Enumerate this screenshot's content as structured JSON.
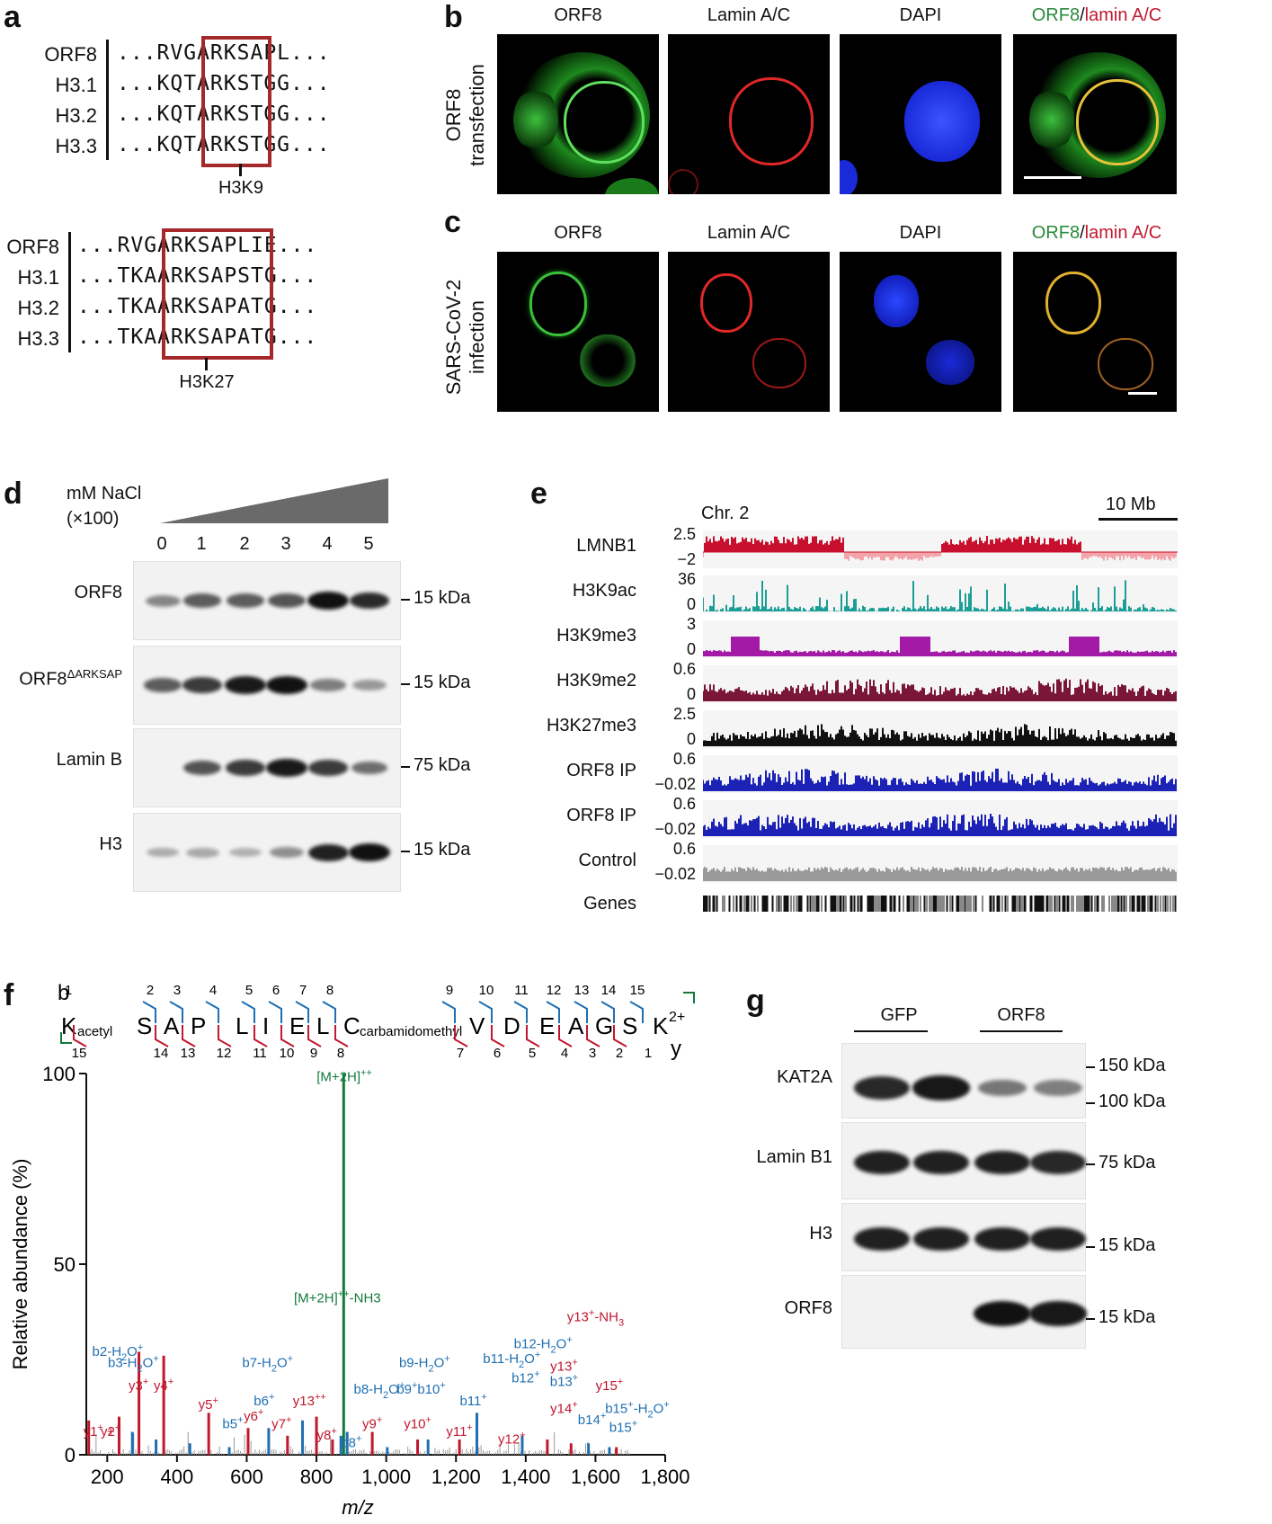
{
  "panels": {
    "a": "a",
    "b": "b",
    "c": "c",
    "d": "d",
    "e": "e",
    "f": "f",
    "g": "g"
  },
  "panel_a": {
    "top": {
      "rows": [
        {
          "label": "ORF8",
          "seq": "...RVGARKSAPL..."
        },
        {
          "label": "H3.1",
          "seq": "...KQTARKSTGG..."
        },
        {
          "label": "H3.2",
          "seq": "...KQTARKSTGG..."
        },
        {
          "label": "H3.3",
          "seq": "...KQTARKSTGG..."
        }
      ],
      "site": "H3K9"
    },
    "bottom": {
      "rows": [
        {
          "label": "ORF8",
          "seq": "...RVGARKSAPLIE..."
        },
        {
          "label": "H3.1",
          "seq": "...TKAARKSAPSTG..."
        },
        {
          "label": "H3.2",
          "seq": "...TKAARKSAPATG..."
        },
        {
          "label": "H3.3",
          "seq": "...TKAARKSAPATG..."
        }
      ],
      "site": "H3K27"
    }
  },
  "panel_b": {
    "row_label_1": "ORF8",
    "row_label_2": "transfection",
    "cols": [
      "ORF8",
      "Lamin A/C",
      "DAPI"
    ],
    "merge_green": "ORF8",
    "merge_sep": "/",
    "merge_red": "lamin A/C"
  },
  "panel_c": {
    "row_label_1": "SARS-CoV-2",
    "row_label_2": "infection",
    "cols": [
      "ORF8",
      "Lamin A/C",
      "DAPI"
    ],
    "merge_green": "ORF8",
    "merge_sep": "/",
    "merge_red": "lamin A/C"
  },
  "panel_d": {
    "nacl_1": "mM NaCl",
    "nacl_2": "(×100)",
    "lanes": [
      "0",
      "1",
      "2",
      "3",
      "4",
      "5"
    ],
    "blots": [
      {
        "label": "ORF8",
        "size": "15 kDa",
        "levels": [
          0.3,
          0.55,
          0.55,
          0.6,
          1.0,
          0.85
        ]
      },
      {
        "label": "ORF8",
        "label_sup": "ΔARKSAP",
        "size": "15 kDa",
        "levels": [
          0.55,
          0.75,
          0.95,
          1.0,
          0.35,
          0.2
        ]
      },
      {
        "label": "Lamin  B",
        "size": "75 kDa",
        "levels": [
          0,
          0.6,
          0.75,
          0.95,
          0.75,
          0.45
        ]
      },
      {
        "label": "H3",
        "size": "15 kDa",
        "levels": [
          0.08,
          0.1,
          0.05,
          0.25,
          0.9,
          1.0
        ]
      }
    ]
  },
  "panel_e": {
    "chrom": "Chr. 2",
    "scale": "10 Mb",
    "tracks": [
      {
        "label": "LMNB1",
        "ymax": "2.5",
        "ymin": "−2",
        "color": "#c8102e",
        "neg_color": "#f4a3a8"
      },
      {
        "label": "H3K9ac",
        "ymax": "36",
        "ymin": "0",
        "color": "#1a9e96"
      },
      {
        "label": "H3K9me3",
        "ymax": "3",
        "ymin": "0",
        "color": "#a21aa6"
      },
      {
        "label": "H3K9me2",
        "ymax": "0.6",
        "ymin": "0",
        "color": "#7a1638"
      },
      {
        "label": "H3K27me3",
        "ymax": "2.5",
        "ymin": "0",
        "color": "#111111"
      },
      {
        "label": "ORF8 IP",
        "ymax": "0.6",
        "ymin": "−0.02",
        "color": "#1c22b5"
      },
      {
        "label": "ORF8 IP",
        "ymax": "0.6",
        "ymin": "−0.02",
        "color": "#1c22b5"
      },
      {
        "label": "Control",
        "ymax": "0.6",
        "ymin": "−0.02",
        "color": "#9a9a9a"
      }
    ],
    "genes_label": "Genes"
  },
  "panel_f": {
    "b_label": "b",
    "y_label_seq": "y",
    "charge": "2+",
    "residues": [
      {
        "aa": "K",
        "mod": "acetyl"
      },
      {
        "aa": "S"
      },
      {
        "aa": "A"
      },
      {
        "aa": "P"
      },
      {
        "aa": "L"
      },
      {
        "aa": "I"
      },
      {
        "aa": "E"
      },
      {
        "aa": "L"
      },
      {
        "aa": "C",
        "mod": "carbamidomethyl"
      },
      {
        "aa": "V"
      },
      {
        "aa": "D"
      },
      {
        "aa": "E"
      },
      {
        "aa": "A"
      },
      {
        "aa": "G"
      },
      {
        "aa": "S"
      },
      {
        "aa": "K"
      }
    ],
    "b_numbers": [
      "1",
      "2",
      "3",
      "4",
      "5",
      "6",
      "7",
      "8",
      "9",
      "10",
      "11",
      "12",
      "13",
      "14",
      "15"
    ],
    "y_numbers": [
      "15",
      "14",
      "13",
      "12",
      "11",
      "10",
      "9",
      "8",
      "7",
      "6",
      "5",
      "4",
      "3",
      "2",
      "1"
    ],
    "chart_data": {
      "type": "bar",
      "xlabel": "m/z",
      "ylabel": "Relative abundance (%)",
      "xlim": [
        140,
        1800
      ],
      "ylim": [
        0,
        100
      ],
      "xticks": [
        "200",
        "400",
        "600",
        "800",
        "1,000",
        "1,200",
        "1,400",
        "1,600",
        "1,800"
      ],
      "yticks": [
        "0",
        "50",
        "100"
      ],
      "colors": {
        "y": "#c0182e",
        "b": "#1f6fb2",
        "precursor": "#127a3a",
        "other": "#9a9a9a"
      },
      "peaks": [
        {
          "mz": 147,
          "rel": 9,
          "ion": "y"
        },
        {
          "mz": 234,
          "rel": 10,
          "ion": "y"
        },
        {
          "mz": 272,
          "rel": 6,
          "ion": "b"
        },
        {
          "mz": 291,
          "rel": 27,
          "ion": "y"
        },
        {
          "mz": 340,
          "rel": 4,
          "ion": "b"
        },
        {
          "mz": 362,
          "rel": 26,
          "ion": "y"
        },
        {
          "mz": 437,
          "rel": 3,
          "ion": "b"
        },
        {
          "mz": 491,
          "rel": 11,
          "ion": "y"
        },
        {
          "mz": 550,
          "rel": 2,
          "ion": "b"
        },
        {
          "mz": 604,
          "rel": 7,
          "ion": "y"
        },
        {
          "mz": 663,
          "rel": 7,
          "ion": "b"
        },
        {
          "mz": 717,
          "rel": 5,
          "ion": "y"
        },
        {
          "mz": 760,
          "rel": 9,
          "ion": "b"
        },
        {
          "mz": 800,
          "rel": 10,
          "ion": "y"
        },
        {
          "mz": 846,
          "rel": 4,
          "ion": "y"
        },
        {
          "mz": 870,
          "rel": 5,
          "ion": "b"
        },
        {
          "mz": 878,
          "rel": 100,
          "ion": "precursor"
        },
        {
          "mz": 888,
          "rel": 6,
          "ion": "b"
        },
        {
          "mz": 960,
          "rel": 6,
          "ion": "y"
        },
        {
          "mz": 1003,
          "rel": 2,
          "ion": "b"
        },
        {
          "mz": 1090,
          "rel": 4,
          "ion": "y"
        },
        {
          "mz": 1120,
          "rel": 4,
          "ion": "b"
        },
        {
          "mz": 1210,
          "rel": 4,
          "ion": "y"
        },
        {
          "mz": 1260,
          "rel": 11,
          "ion": "b"
        },
        {
          "mz": 1390,
          "rel": 5,
          "ion": "b"
        },
        {
          "mz": 1462,
          "rel": 4,
          "ion": "y"
        },
        {
          "mz": 1530,
          "rel": 3,
          "ion": "y"
        },
        {
          "mz": 1580,
          "rel": 3,
          "ion": "b"
        },
        {
          "mz": 1640,
          "rel": 2,
          "ion": "b"
        },
        {
          "mz": 1660,
          "rel": 2,
          "ion": "y"
        }
      ],
      "annotations": [
        {
          "mz": 160,
          "rel": 5,
          "text": "y1",
          "sup": "+",
          "color": "y"
        },
        {
          "mz": 210,
          "rel": 5,
          "text": "y2",
          "sup": "+",
          "color": "y"
        },
        {
          "mz": 210,
          "rel": 5,
          "text": "+",
          "color": "y"
        },
        {
          "mz": 230,
          "rel": 26,
          "text": "b2-H",
          "sub": "2",
          "text2": "O",
          "sup2": "+",
          "color": "b"
        },
        {
          "mz": 275,
          "rel": 23,
          "text": "b3-H",
          "sub": "2",
          "text2": "O",
          "sup2": "+",
          "color": "b"
        },
        {
          "mz": 290,
          "rel": 17,
          "text": "y3",
          "sup": "+",
          "color": "y"
        },
        {
          "mz": 362,
          "rel": 17,
          "text": "y4",
          "sup": "+",
          "color": "y"
        },
        {
          "mz": 490,
          "rel": 12,
          "text": "y5",
          "sup": "+",
          "color": "y"
        },
        {
          "mz": 560,
          "rel": 7,
          "text": "b5",
          "sup": "+",
          "color": "b"
        },
        {
          "mz": 620,
          "rel": 9,
          "text": "y6",
          "sup": "+",
          "color": "y"
        },
        {
          "mz": 660,
          "rel": 23,
          "text": "b7-H",
          "sub": "2",
          "text2": "O",
          "sup2": "+",
          "color": "b"
        },
        {
          "mz": 650,
          "rel": 13,
          "text": "b6",
          "sup": "+",
          "color": "b"
        },
        {
          "mz": 700,
          "rel": 7,
          "text": "y7",
          "sup": "+",
          "color": "y"
        },
        {
          "mz": 780,
          "rel": 13,
          "text": "y13",
          "sup": "++",
          "color": "y"
        },
        {
          "mz": 830,
          "rel": 4,
          "text": "y8",
          "sup": "+",
          "color": "y"
        },
        {
          "mz": 980,
          "rel": 16,
          "text": "b8-H",
          "sub": "2",
          "text2": "O",
          "sup2": "+",
          "color": "b"
        },
        {
          "mz": 900,
          "rel": 2,
          "text": "b8",
          "sup": "+",
          "color": "b"
        },
        {
          "mz": 960,
          "rel": 7,
          "text": "y9",
          "sup": "+",
          "color": "y"
        },
        {
          "mz": 1110,
          "rel": 23,
          "text": "b9-H",
          "sub": "2",
          "text2": "O",
          "sup2": "+",
          "color": "b"
        },
        {
          "mz": 1060,
          "rel": 16,
          "text": "b9",
          "sup": "+",
          "color": "b"
        },
        {
          "mz": 1090,
          "rel": 7,
          "text": "y10",
          "sup": "+",
          "color": "y"
        },
        {
          "mz": 1130,
          "rel": 16,
          "text": "b10",
          "sup": "+",
          "color": "b"
        },
        {
          "mz": 1360,
          "rel": 24,
          "text": "b11-H",
          "sub": "2",
          "text2": "O",
          "sup2": "+",
          "color": "b"
        },
        {
          "mz": 1250,
          "rel": 13,
          "text": "b11",
          "sup": "+",
          "color": "b"
        },
        {
          "mz": 1210,
          "rel": 5,
          "text": "y11",
          "sup": "+",
          "color": "y"
        },
        {
          "mz": 1450,
          "rel": 28,
          "text": "b12-H",
          "sub": "2",
          "text2": "O",
          "sup2": "+",
          "color": "b"
        },
        {
          "mz": 1400,
          "rel": 19,
          "text": "b12",
          "sup": "+",
          "color": "b"
        },
        {
          "mz": 1360,
          "rel": 3,
          "text": "y12",
          "sup": "+",
          "color": "y"
        },
        {
          "mz": 1600,
          "rel": 35,
          "text": "y13",
          "sup": "+",
          "text2": "-NH",
          "sub2": "3",
          "color": "y"
        },
        {
          "mz": 1510,
          "rel": 22,
          "text": "y13",
          "sup": "+",
          "color": "y"
        },
        {
          "mz": 1510,
          "rel": 18,
          "text": "b13",
          "sup": "+",
          "color": "b"
        },
        {
          "mz": 1510,
          "rel": 11,
          "text": "y14",
          "sup": "+",
          "color": "y"
        },
        {
          "mz": 1590,
          "rel": 8,
          "text": "b14",
          "sup": "+",
          "color": "b"
        },
        {
          "mz": 1640,
          "rel": 17,
          "text": "y15",
          "sup": "+",
          "color": "y"
        },
        {
          "mz": 1720,
          "rel": 11,
          "text": "b15",
          "sup": "+",
          "text2": "-H",
          "sub2": "2",
          "text3": "O",
          "sup3": "+",
          "color": "b"
        },
        {
          "mz": 1680,
          "rel": 6,
          "text": "b15",
          "sup": "+",
          "color": "b"
        },
        {
          "mz": 860,
          "rel": 40,
          "text": "[M+2H]",
          "sup": "++",
          "text2": "-NH3",
          "color": "precursor"
        },
        {
          "mz": 880,
          "rel": 98,
          "text": "[M+2H]",
          "sup": "++",
          "color": "precursor"
        }
      ]
    }
  },
  "panel_g": {
    "group1": "GFP",
    "group2": "ORF8",
    "blots": [
      {
        "label": "KAT2A",
        "sizes": [
          "150 kDa",
          "100 kDa"
        ],
        "levels": [
          0.85,
          0.95,
          0.35,
          0.3
        ]
      },
      {
        "label": "Lamin B1",
        "sizes": [
          "75 kDa"
        ],
        "levels": [
          0.9,
          0.9,
          0.9,
          0.85
        ]
      },
      {
        "label": "H3",
        "sizes": [
          "15 kDa"
        ],
        "levels": [
          0.9,
          0.9,
          0.9,
          0.9
        ]
      },
      {
        "label": "ORF8",
        "sizes": [
          "15 kDa"
        ],
        "levels": [
          0,
          0,
          1.0,
          0.95
        ]
      }
    ]
  }
}
